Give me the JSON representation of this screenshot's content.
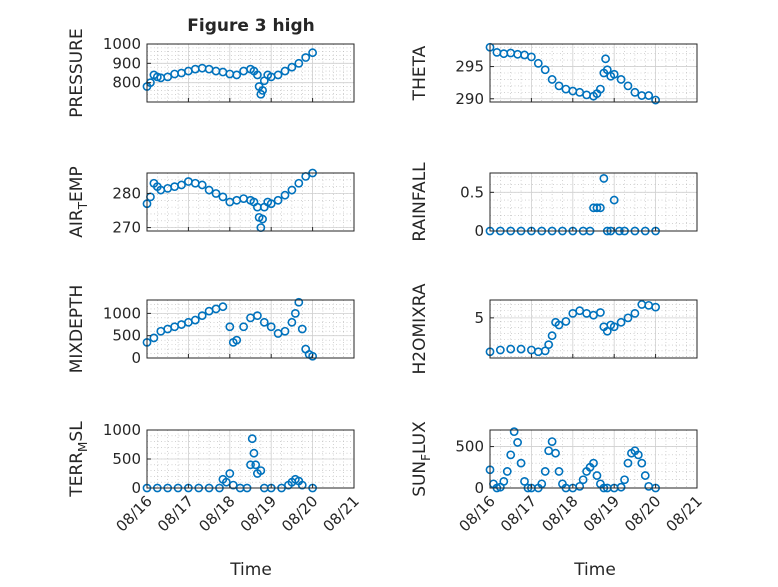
{
  "figure": {
    "title": "Figure 3 high",
    "xlabel": "Time"
  },
  "colors": {
    "marker": "#0072BD",
    "axis": "#262626",
    "grid": "#b8b8b8"
  },
  "chart_data": [
    {
      "type": "scatter",
      "id": "pressure",
      "ylabel": "PRESSURE",
      "xlim": [
        "08/16",
        "08/21"
      ],
      "ylim": [
        700,
        1000
      ],
      "yticks": [
        800,
        900,
        1000
      ],
      "ytick_labels": [
        "800",
        "900",
        "1000"
      ],
      "xtick_labels": [
        "08/16",
        "08/17",
        "08/18",
        "08/19",
        "08/20",
        "08/21"
      ],
      "grid": true,
      "minor_grid": true,
      "series": [
        {
          "x": [
            "08/16 00:00",
            "08/16 02:00",
            "08/16 04:00",
            "08/16 06:00",
            "08/16 08:00",
            "08/16 12:00",
            "08/16 16:00",
            "08/16 20:00",
            "08/17 00:00",
            "08/17 04:00",
            "08/17 08:00",
            "08/17 12:00",
            "08/17 16:00",
            "08/17 20:00",
            "08/18 00:00",
            "08/18 04:00",
            "08/18 08:00",
            "08/18 12:00",
            "08/18 14:00",
            "08/18 16:00",
            "08/18 17:00",
            "08/18 18:00",
            "08/18 19:00",
            "08/18 20:00",
            "08/18 22:00",
            "08/19 00:00",
            "08/19 04:00",
            "08/19 08:00",
            "08/19 12:00",
            "08/19 16:00",
            "08/19 20:00",
            "08/20 00:00"
          ],
          "y": [
            780,
            800,
            840,
            830,
            825,
            830,
            845,
            850,
            860,
            870,
            875,
            870,
            860,
            855,
            845,
            840,
            860,
            870,
            860,
            840,
            780,
            740,
            760,
            810,
            840,
            830,
            840,
            860,
            880,
            900,
            930,
            955
          ]
        }
      ]
    },
    {
      "type": "scatter",
      "id": "theta",
      "ylabel": "THETA",
      "xlim": [
        "08/16",
        "08/21"
      ],
      "ylim": [
        289.5,
        298.5
      ],
      "yticks": [
        290,
        295
      ],
      "ytick_labels": [
        "290",
        "295"
      ],
      "xtick_labels": [
        "08/16",
        "08/17",
        "08/18",
        "08/19",
        "08/20",
        "08/21"
      ],
      "grid": true,
      "minor_grid": true,
      "series": [
        {
          "x": [
            "08/16 00:00",
            "08/16 04:00",
            "08/16 08:00",
            "08/16 12:00",
            "08/16 16:00",
            "08/16 20:00",
            "08/17 00:00",
            "08/17 04:00",
            "08/17 08:00",
            "08/17 12:00",
            "08/17 16:00",
            "08/17 20:00",
            "08/18 00:00",
            "08/18 04:00",
            "08/18 08:00",
            "08/18 12:00",
            "08/18 14:00",
            "08/18 16:00",
            "08/18 18:00",
            "08/18 19:00",
            "08/18 20:00",
            "08/18 22:00",
            "08/19 00:00",
            "08/19 04:00",
            "08/19 08:00",
            "08/19 12:00",
            "08/19 16:00",
            "08/19 20:00",
            "08/20 00:00"
          ],
          "y": [
            298.0,
            297.2,
            297.0,
            297.1,
            296.9,
            296.8,
            296.5,
            295.5,
            294.5,
            293.0,
            292.0,
            291.5,
            291.2,
            291.0,
            290.6,
            290.4,
            290.8,
            291.5,
            294.0,
            296.2,
            294.5,
            293.5,
            293.8,
            293.0,
            292.0,
            291.0,
            290.5,
            290.5,
            289.8
          ]
        }
      ]
    },
    {
      "type": "scatter",
      "id": "air_temp",
      "ylabel_main": "AIR",
      "ylabel_sub": "T",
      "ylabel_rest": "EMP",
      "xlim": [
        "08/16",
        "08/21"
      ],
      "ylim": [
        269,
        286
      ],
      "yticks": [
        270,
        280
      ],
      "ytick_labels": [
        "270",
        "280"
      ],
      "xtick_labels": [
        "08/16",
        "08/17",
        "08/18",
        "08/19",
        "08/20",
        "08/21"
      ],
      "grid": true,
      "minor_grid": true,
      "series": [
        {
          "x": [
            "08/16 00:00",
            "08/16 02:00",
            "08/16 04:00",
            "08/16 06:00",
            "08/16 08:00",
            "08/16 12:00",
            "08/16 16:00",
            "08/16 20:00",
            "08/17 00:00",
            "08/17 04:00",
            "08/17 08:00",
            "08/17 12:00",
            "08/17 16:00",
            "08/17 20:00",
            "08/18 00:00",
            "08/18 04:00",
            "08/18 08:00",
            "08/18 12:00",
            "08/18 14:00",
            "08/18 16:00",
            "08/18 17:00",
            "08/18 18:00",
            "08/18 19:00",
            "08/18 20:00",
            "08/18 22:00",
            "08/19 00:00",
            "08/19 04:00",
            "08/19 08:00",
            "08/19 12:00",
            "08/19 16:00",
            "08/19 20:00",
            "08/20 00:00"
          ],
          "y": [
            277,
            279,
            283,
            282,
            281,
            281.5,
            282,
            282.5,
            283.5,
            283,
            282.5,
            281,
            280,
            279,
            277.5,
            278,
            278.5,
            278,
            277.5,
            276,
            273,
            270,
            272.5,
            276,
            277.5,
            277,
            278,
            279.5,
            281,
            283,
            285,
            286
          ]
        }
      ]
    },
    {
      "type": "scatter",
      "id": "rainfall",
      "ylabel": "RAINFALL",
      "xlim": [
        "08/16",
        "08/21"
      ],
      "ylim": [
        0,
        0.75
      ],
      "yticks": [
        0,
        0.5
      ],
      "ytick_labels": [
        "0",
        "0.5"
      ],
      "xtick_labels": [
        "08/16",
        "08/17",
        "08/18",
        "08/19",
        "08/20",
        "08/21"
      ],
      "grid": true,
      "minor_grid": true,
      "series": [
        {
          "x": [
            "08/16 00:00",
            "08/16 06:00",
            "08/16 12:00",
            "08/16 18:00",
            "08/17 00:00",
            "08/17 06:00",
            "08/17 12:00",
            "08/17 18:00",
            "08/18 00:00",
            "08/18 06:00",
            "08/18 10:00",
            "08/18 12:00",
            "08/18 14:00",
            "08/18 16:00",
            "08/18 18:00",
            "08/18 20:00",
            "08/18 22:00",
            "08/19 00:00",
            "08/19 03:00",
            "08/19 06:00",
            "08/19 12:00",
            "08/19 18:00",
            "08/20 00:00"
          ],
          "y": [
            0,
            0,
            0,
            0,
            0,
            0,
            0,
            0,
            0,
            0,
            0,
            0.3,
            0.3,
            0.3,
            0.68,
            0,
            0,
            0.4,
            0,
            0,
            0,
            0,
            0
          ]
        }
      ]
    },
    {
      "type": "scatter",
      "id": "mixdepth",
      "ylabel": "MIXDEPTH",
      "xlim": [
        "08/16",
        "08/21"
      ],
      "ylim": [
        0,
        1300
      ],
      "yticks": [
        0,
        500,
        1000
      ],
      "ytick_labels": [
        "0",
        "500",
        "1000"
      ],
      "xtick_labels": [
        "08/16",
        "08/17",
        "08/18",
        "08/19",
        "08/20",
        "08/21"
      ],
      "grid": true,
      "minor_grid": true,
      "series": [
        {
          "x": [
            "08/16 00:00",
            "08/16 04:00",
            "08/16 08:00",
            "08/16 12:00",
            "08/16 16:00",
            "08/16 20:00",
            "08/17 00:00",
            "08/17 04:00",
            "08/17 08:00",
            "08/17 12:00",
            "08/17 16:00",
            "08/17 20:00",
            "08/18 00:00",
            "08/18 02:00",
            "08/18 04:00",
            "08/18 08:00",
            "08/18 12:00",
            "08/18 16:00",
            "08/18 20:00",
            "08/19 00:00",
            "08/19 04:00",
            "08/19 08:00",
            "08/19 12:00",
            "08/19 14:00",
            "08/19 16:00",
            "08/19 18:00",
            "08/19 20:00",
            "08/19 22:00",
            "08/20 00:00"
          ],
          "y": [
            350,
            450,
            600,
            650,
            700,
            750,
            800,
            850,
            950,
            1050,
            1100,
            1150,
            700,
            350,
            400,
            700,
            900,
            950,
            800,
            700,
            550,
            600,
            800,
            1000,
            1250,
            650,
            200,
            80,
            40
          ]
        }
      ]
    },
    {
      "type": "scatter",
      "id": "h2omixra",
      "ylabel": "H2OMIXRA",
      "xlim": [
        "08/16",
        "08/21"
      ],
      "ylim": [
        0.5,
        7
      ],
      "yticks": [
        5
      ],
      "ytick_labels": [
        "5"
      ],
      "xtick_labels": [
        "08/16",
        "08/17",
        "08/18",
        "08/19",
        "08/20",
        "08/21"
      ],
      "grid": true,
      "minor_grid": true,
      "series": [
        {
          "x": [
            "08/16 00:00",
            "08/16 06:00",
            "08/16 12:00",
            "08/16 18:00",
            "08/17 00:00",
            "08/17 04:00",
            "08/17 08:00",
            "08/17 10:00",
            "08/17 12:00",
            "08/17 14:00",
            "08/17 16:00",
            "08/17 20:00",
            "08/18 00:00",
            "08/18 04:00",
            "08/18 08:00",
            "08/18 12:00",
            "08/18 16:00",
            "08/18 18:00",
            "08/18 20:00",
            "08/18 22:00",
            "08/19 00:00",
            "08/19 04:00",
            "08/19 08:00",
            "08/19 12:00",
            "08/19 16:00",
            "08/19 20:00",
            "08/20 00:00"
          ],
          "y": [
            1.2,
            1.4,
            1.5,
            1.5,
            1.4,
            1.2,
            1.3,
            2.0,
            3.0,
            4.5,
            4.2,
            4.6,
            5.5,
            5.8,
            5.5,
            5.3,
            5.6,
            4.0,
            3.5,
            4.2,
            4.0,
            4.5,
            5.0,
            5.5,
            6.5,
            6.4,
            6.2
          ]
        }
      ]
    },
    {
      "type": "scatter",
      "id": "terr_msl",
      "ylabel_main": "TERR",
      "ylabel_sub": "M",
      "ylabel_rest": "SL",
      "xlim": [
        "08/16",
        "08/21"
      ],
      "ylim": [
        0,
        1000
      ],
      "yticks": [
        0,
        500,
        1000
      ],
      "ytick_labels": [
        "0",
        "500",
        "1000"
      ],
      "xtick_labels": [
        "08/16",
        "08/17",
        "08/18",
        "08/19",
        "08/20",
        "08/21"
      ],
      "grid": true,
      "minor_grid": true,
      "series": [
        {
          "x": [
            "08/16 00:00",
            "08/16 06:00",
            "08/16 12:00",
            "08/16 18:00",
            "08/17 00:00",
            "08/17 06:00",
            "08/17 12:00",
            "08/17 18:00",
            "08/17 20:00",
            "08/17 22:00",
            "08/18 00:00",
            "08/18 02:00",
            "08/18 06:00",
            "08/18 10:00",
            "08/18 12:00",
            "08/18 13:00",
            "08/18 14:00",
            "08/18 15:00",
            "08/18 16:00",
            "08/18 18:00",
            "08/18 20:00",
            "08/19 00:00",
            "08/19 06:00",
            "08/19 10:00",
            "08/19 12:00",
            "08/19 14:00",
            "08/19 16:00",
            "08/19 18:00",
            "08/20 00:00"
          ],
          "y": [
            0,
            0,
            0,
            0,
            0,
            0,
            0,
            0,
            150,
            100,
            250,
            50,
            0,
            0,
            400,
            850,
            600,
            400,
            250,
            300,
            0,
            0,
            0,
            50,
            100,
            150,
            120,
            50,
            0
          ]
        }
      ]
    },
    {
      "type": "scatter",
      "id": "sun_flux",
      "ylabel_main": "SUN",
      "ylabel_sub": "F",
      "ylabel_rest": "LUX",
      "xlim": [
        "08/16",
        "08/21"
      ],
      "ylim": [
        0,
        700
      ],
      "yticks": [
        0,
        500
      ],
      "ytick_labels": [
        "0",
        "500"
      ],
      "xtick_labels": [
        "08/16",
        "08/17",
        "08/18",
        "08/19",
        "08/20",
        "08/21"
      ],
      "grid": true,
      "minor_grid": true,
      "series": [
        {
          "x": [
            "08/16 00:00",
            "08/16 02:00",
            "08/16 04:00",
            "08/16 06:00",
            "08/16 08:00",
            "08/16 10:00",
            "08/16 12:00",
            "08/16 14:00",
            "08/16 16:00",
            "08/16 18:00",
            "08/16 20:00",
            "08/16 22:00",
            "08/17 00:00",
            "08/17 04:00",
            "08/17 06:00",
            "08/17 08:00",
            "08/17 10:00",
            "08/17 12:00",
            "08/17 14:00",
            "08/17 16:00",
            "08/17 18:00",
            "08/17 20:00",
            "08/18 00:00",
            "08/18 04:00",
            "08/18 06:00",
            "08/18 08:00",
            "08/18 10:00",
            "08/18 12:00",
            "08/18 14:00",
            "08/18 16:00",
            "08/18 18:00",
            "08/18 20:00",
            "08/19 00:00",
            "08/19 04:00",
            "08/19 06:00",
            "08/19 08:00",
            "08/19 10:00",
            "08/19 12:00",
            "08/19 14:00",
            "08/19 16:00",
            "08/19 18:00",
            "08/19 20:00",
            "08/20 00:00"
          ],
          "y": [
            220,
            50,
            0,
            10,
            80,
            200,
            400,
            680,
            550,
            300,
            80,
            0,
            0,
            0,
            50,
            200,
            450,
            560,
            420,
            200,
            50,
            0,
            0,
            20,
            100,
            200,
            250,
            300,
            150,
            50,
            0,
            0,
            0,
            10,
            100,
            300,
            420,
            450,
            400,
            300,
            150,
            20,
            0
          ]
        }
      ]
    }
  ]
}
